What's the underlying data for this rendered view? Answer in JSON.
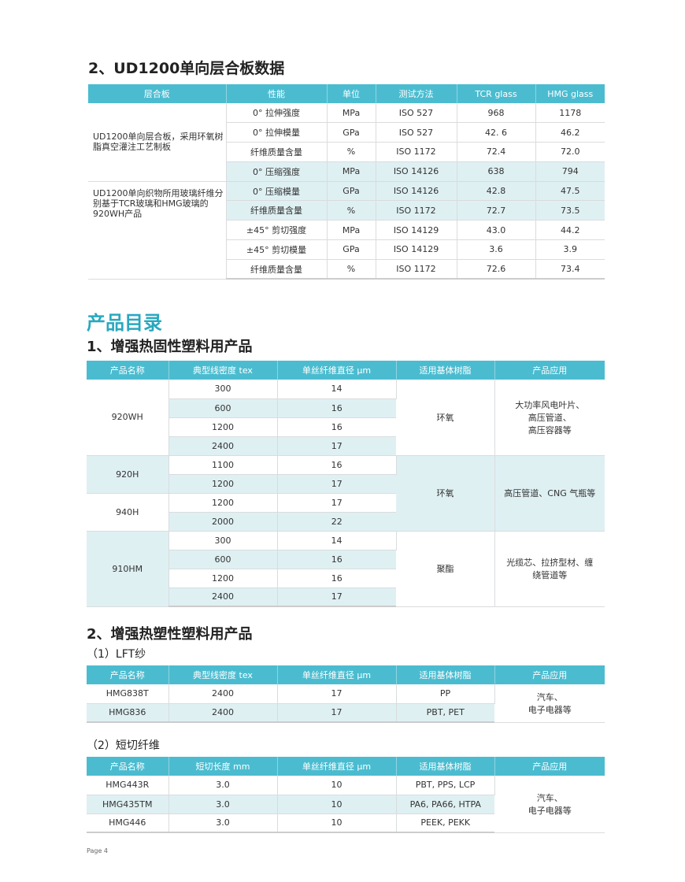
{
  "section1_title": "2、UD1200单向层合板数据",
  "table1": {
    "headers": [
      "层合板",
      "性能",
      "单位",
      "测试方法",
      "TCR glass",
      "HMG glass"
    ],
    "desc1": "UD1200单向层合板，采用环氧树脂真空灌注工艺制板",
    "desc2": "UD1200单向织物所用玻璃纤维分别基于TCR玻璃和HMG玻璃的920WH产品",
    "rows": [
      [
        "0° 拉伸强度",
        "MPa",
        "ISO 527",
        "968",
        "1178"
      ],
      [
        "0° 拉伸模量",
        "GPa",
        "ISO 527",
        "42. 6",
        "46.2"
      ],
      [
        "纤维质量含量",
        "%",
        "ISO 1172",
        "72.4",
        "72.0"
      ],
      [
        "0° 压缩强度",
        "MPa",
        "ISO 14126",
        "638",
        "794"
      ],
      [
        "0° 压缩模量",
        "GPa",
        "ISO 14126",
        "42.8",
        "47.5"
      ],
      [
        "纤维质量含量",
        "%",
        "ISO 1172",
        "72.7",
        "73.5"
      ],
      [
        "±45° 剪切强度",
        "MPa",
        "ISO 14129",
        "43.0",
        "44.2"
      ],
      [
        "±45° 剪切模量",
        "GPa",
        "ISO 14129",
        "3.6",
        "3.9"
      ],
      [
        "纤维质量含量",
        "%",
        "ISO 1172",
        "72.6",
        "73.4"
      ]
    ]
  },
  "catalog_title": "产品目录",
  "section2_title": "1、增强热固性塑料用产品",
  "table2": {
    "headers": [
      "产品名称",
      "典型线密度 tex",
      "单丝纤维直径 μm",
      "适用基体树脂",
      "产品应用"
    ],
    "groups": [
      {
        "name": "920WH",
        "rows": [
          [
            "300",
            "14"
          ],
          [
            "600",
            "16"
          ],
          [
            "1200",
            "16"
          ],
          [
            "2400",
            "17"
          ]
        ]
      },
      {
        "name": "920H",
        "rows": [
          [
            "1100",
            "16"
          ],
          [
            "1200",
            "17"
          ]
        ]
      },
      {
        "name": "940H",
        "rows": [
          [
            "1200",
            "17"
          ],
          [
            "2000",
            "22"
          ]
        ]
      },
      {
        "name": "910HM",
        "rows": [
          [
            "300",
            "14"
          ],
          [
            "600",
            "16"
          ],
          [
            "1200",
            "16"
          ],
          [
            "2400",
            "17"
          ]
        ]
      }
    ],
    "resins": [
      "环氧",
      "环氧",
      "聚酯"
    ],
    "apps": [
      "大功率风电叶片、\n高压管道、\n高压容器等",
      "高压管道、CNG 气瓶等",
      "光缆芯、拉挤型材、缠\n绕管道等"
    ]
  },
  "section3_title": "2、增强热塑性塑料用产品",
  "sub1": "（1）LFT纱",
  "table3": {
    "headers": [
      "产品名称",
      "典型线密度 tex",
      "单丝纤维直径 μm",
      "适用基体树脂",
      "产品应用"
    ],
    "rows": [
      [
        "HMG838T",
        "2400",
        "17",
        "PP"
      ],
      [
        "HMG836",
        "2400",
        "17",
        "PBT, PET"
      ]
    ],
    "app": "汽车、\n电子电器等"
  },
  "sub2": "（2）短切纤维",
  "table4": {
    "headers": [
      "产品名称",
      "短切长度 mm",
      "单丝纤维直径 μm",
      "适用基体树脂",
      "产品应用"
    ],
    "rows": [
      [
        "HMG443R",
        "3.0",
        "10",
        "PBT, PPS, LCP"
      ],
      [
        "HMG435TM",
        "3.0",
        "10",
        "PA6, PA66, HTPA"
      ],
      [
        "HMG446",
        "3.0",
        "10",
        "PEEK, PEKK"
      ]
    ],
    "app": "汽车、\n电子电器等"
  },
  "footer": "Page 4",
  "colors": {
    "header": "#4bbcd0",
    "shade": "#dff0f3",
    "accent": "#29a8c0"
  }
}
